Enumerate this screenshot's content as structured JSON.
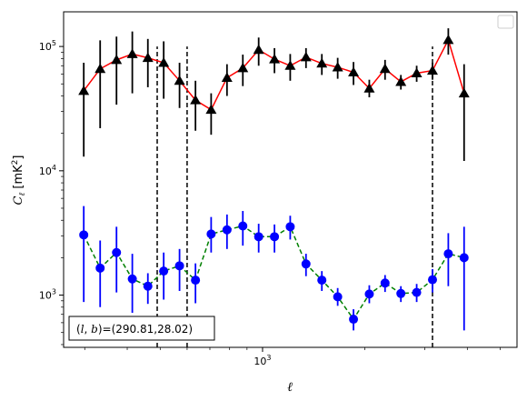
{
  "chart_data": {
    "type": "scatter",
    "title": "",
    "xlabel": "ℓ",
    "ylabel": "C_ℓ [mK²]",
    "xscale": "log",
    "yscale": "log",
    "xlim": [
      260,
      5600
    ],
    "ylim": [
      380,
      190000
    ],
    "x_tick_labels": [
      {
        "value": 1000,
        "base": "10",
        "exp": "3"
      }
    ],
    "y_tick_labels": [
      {
        "value": 1000,
        "base": "10",
        "exp": "3"
      },
      {
        "value": 10000,
        "base": "10",
        "exp": "4"
      },
      {
        "value": 100000,
        "base": "10",
        "exp": "5"
      }
    ],
    "series": [
      {
        "color": "#ff0000",
        "line_style": "solid",
        "marker": "triangle",
        "marker_color": "#000000",
        "errorbar_color": "#000000",
        "points": [
          {
            "x": 298,
            "y": 44000,
            "lo": 13000,
            "hi": 74000
          },
          {
            "x": 333,
            "y": 66000,
            "lo": 22000,
            "hi": 112000
          },
          {
            "x": 372,
            "y": 78000,
            "lo": 34000,
            "hi": 120000
          },
          {
            "x": 414,
            "y": 87000,
            "lo": 42000,
            "hi": 132000
          },
          {
            "x": 460,
            "y": 81000,
            "lo": 47000,
            "hi": 115000
          },
          {
            "x": 512,
            "y": 74000,
            "lo": 38000,
            "hi": 110000
          },
          {
            "x": 570,
            "y": 53000,
            "lo": 32000,
            "hi": 74000
          },
          {
            "x": 635,
            "y": 37000,
            "lo": 21000,
            "hi": 53000
          },
          {
            "x": 706,
            "y": 31000,
            "lo": 19500,
            "hi": 42000
          },
          {
            "x": 786,
            "y": 56000,
            "lo": 40000,
            "hi": 72000
          },
          {
            "x": 875,
            "y": 67000,
            "lo": 48000,
            "hi": 86000
          },
          {
            "x": 974,
            "y": 94000,
            "lo": 70000,
            "hi": 118000
          },
          {
            "x": 1084,
            "y": 79000,
            "lo": 61000,
            "hi": 97000
          },
          {
            "x": 1206,
            "y": 70000,
            "lo": 53000,
            "hi": 87000
          },
          {
            "x": 1342,
            "y": 82000,
            "lo": 67000,
            "hi": 97000
          },
          {
            "x": 1494,
            "y": 73000,
            "lo": 59000,
            "hi": 87000
          },
          {
            "x": 1663,
            "y": 68000,
            "lo": 55000,
            "hi": 81000
          },
          {
            "x": 1851,
            "y": 62000,
            "lo": 49000,
            "hi": 75000
          },
          {
            "x": 2060,
            "y": 46000,
            "lo": 39000,
            "hi": 54000
          },
          {
            "x": 2292,
            "y": 66000,
            "lo": 54000,
            "hi": 78000
          },
          {
            "x": 2551,
            "y": 52000,
            "lo": 45000,
            "hi": 59000
          },
          {
            "x": 2839,
            "y": 61000,
            "lo": 52000,
            "hi": 70000
          },
          {
            "x": 3160,
            "y": 64000,
            "lo": 54000,
            "hi": 74000
          },
          {
            "x": 3517,
            "y": 113000,
            "lo": 86000,
            "hi": 140000
          },
          {
            "x": 3914,
            "y": 42000,
            "lo": 12000,
            "hi": 72000
          }
        ]
      },
      {
        "color": "#008000",
        "line_style": "dashed",
        "marker": "circle",
        "marker_color": "#0000ff",
        "errorbar_color": "#0000ff",
        "points": [
          {
            "x": 298,
            "y": 3050,
            "lo": 880,
            "hi": 5200
          },
          {
            "x": 333,
            "y": 1650,
            "lo": 800,
            "hi": 2750
          },
          {
            "x": 372,
            "y": 2200,
            "lo": 1050,
            "hi": 3550
          },
          {
            "x": 414,
            "y": 1350,
            "lo": 720,
            "hi": 2150
          },
          {
            "x": 460,
            "y": 1180,
            "lo": 850,
            "hi": 1500
          },
          {
            "x": 512,
            "y": 1560,
            "lo": 920,
            "hi": 2200
          },
          {
            "x": 570,
            "y": 1720,
            "lo": 1080,
            "hi": 2350
          },
          {
            "x": 635,
            "y": 1320,
            "lo": 860,
            "hi": 1800
          },
          {
            "x": 706,
            "y": 3100,
            "lo": 2200,
            "hi": 4250
          },
          {
            "x": 786,
            "y": 3350,
            "lo": 2350,
            "hi": 4450
          },
          {
            "x": 875,
            "y": 3600,
            "lo": 2500,
            "hi": 4750
          },
          {
            "x": 974,
            "y": 2950,
            "lo": 2200,
            "hi": 3750
          },
          {
            "x": 1084,
            "y": 2950,
            "lo": 2200,
            "hi": 3700
          },
          {
            "x": 1206,
            "y": 3550,
            "lo": 2800,
            "hi": 4350
          },
          {
            "x": 1342,
            "y": 1780,
            "lo": 1420,
            "hi": 2150
          },
          {
            "x": 1494,
            "y": 1320,
            "lo": 1080,
            "hi": 1560
          },
          {
            "x": 1663,
            "y": 970,
            "lo": 820,
            "hi": 1140
          },
          {
            "x": 1851,
            "y": 640,
            "lo": 520,
            "hi": 770
          },
          {
            "x": 2060,
            "y": 1020,
            "lo": 860,
            "hi": 1200
          },
          {
            "x": 2292,
            "y": 1250,
            "lo": 1060,
            "hi": 1450
          },
          {
            "x": 2551,
            "y": 1030,
            "lo": 880,
            "hi": 1180
          },
          {
            "x": 2839,
            "y": 1050,
            "lo": 880,
            "hi": 1230
          },
          {
            "x": 3160,
            "y": 1330,
            "lo": 1050,
            "hi": 1620
          },
          {
            "x": 3517,
            "y": 2150,
            "lo": 1180,
            "hi": 3150
          },
          {
            "x": 3914,
            "y": 2000,
            "lo": 520,
            "hi": 3550
          }
        ]
      }
    ],
    "vlines": [
      {
        "x": 490,
        "ymin": 380,
        "ymax": 100000
      },
      {
        "x": 600,
        "ymin": 380,
        "ymax": 100000
      },
      {
        "x": 3160,
        "ymin": 380,
        "ymax": 100000
      }
    ],
    "annotation": "(l,b)=(290.81,28.02)",
    "legend_placement": "top-right",
    "grid": false
  }
}
